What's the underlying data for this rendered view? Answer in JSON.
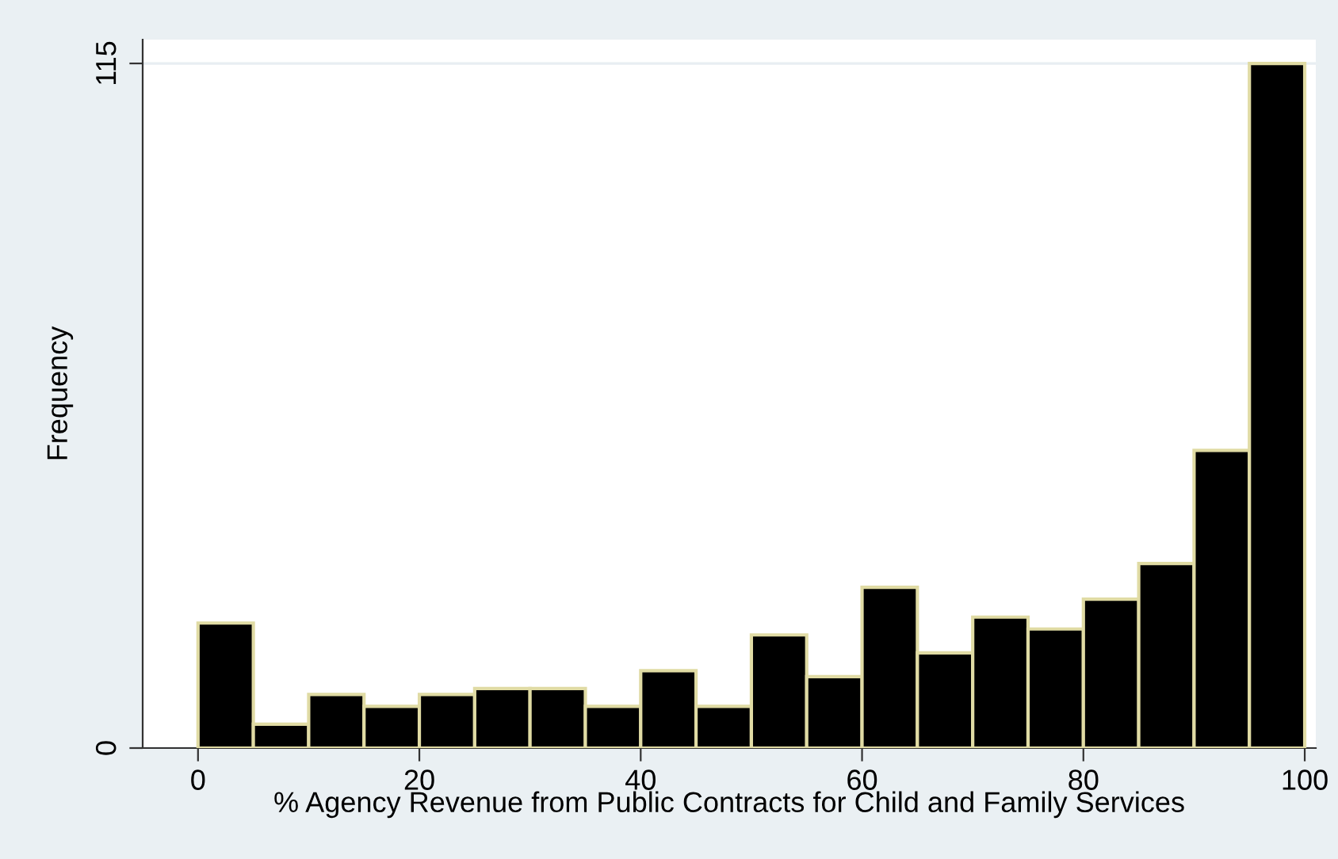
{
  "chart_data": {
    "type": "histogram",
    "xlabel": "% Agency Revenue from Public Contracts for Child and Family Services",
    "ylabel": "Frequency",
    "bins": [
      0,
      5,
      10,
      15,
      20,
      25,
      30,
      35,
      40,
      45,
      50,
      55,
      60,
      65,
      70,
      75,
      80,
      85,
      90,
      95,
      100
    ],
    "values": [
      21,
      4,
      9,
      7,
      9,
      10,
      10,
      7,
      13,
      7,
      19,
      12,
      27,
      16,
      22,
      20,
      25,
      31,
      50,
      115
    ],
    "color": "#000000",
    "xlim": [
      -5,
      101
    ],
    "xticks": [
      0,
      20,
      40,
      60,
      80,
      100
    ],
    "ylim": [
      0,
      119
    ],
    "yticks": [
      0,
      115
    ],
    "grid": "y"
  }
}
